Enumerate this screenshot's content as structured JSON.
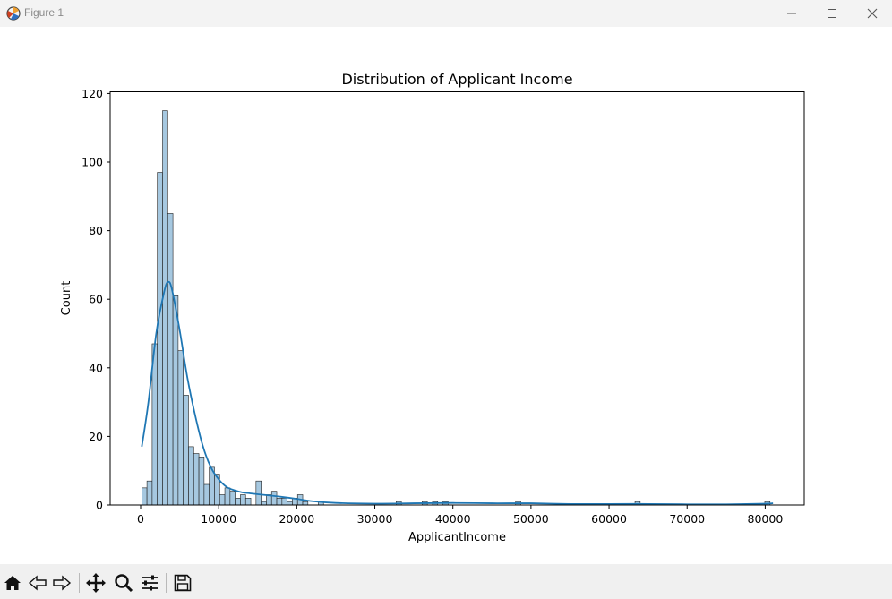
{
  "window": {
    "title": "Figure 1",
    "buttons": [
      "minimize",
      "maximize",
      "close"
    ]
  },
  "toolbar": {
    "icons": [
      "home-icon",
      "back-icon",
      "forward-icon",
      "pan-icon",
      "zoom-icon",
      "configure-subplots-icon",
      "save-icon"
    ]
  },
  "colors": {
    "bar_fill": "#a6c8e0",
    "bar_edge": "#1f1f1f",
    "kde_line": "#1f77b4"
  },
  "chart_data": {
    "type": "bar",
    "title": "Distribution of Applicant Income",
    "xlabel": "ApplicantIncome",
    "ylabel": "Count",
    "xlim": [
      -3900,
      85000
    ],
    "ylim": [
      0,
      120.5
    ],
    "xticks": [
      0,
      10000,
      20000,
      30000,
      40000,
      50000,
      60000,
      70000,
      80000
    ],
    "yticks": [
      0,
      20,
      40,
      60,
      80,
      100,
      120
    ],
    "bin_start": 150,
    "bin_width": 665,
    "bin_counts": [
      5,
      7,
      47,
      97,
      115,
      85,
      61,
      45,
      32,
      17,
      15,
      14,
      6,
      11,
      9,
      3,
      5,
      4,
      2,
      3,
      2,
      0,
      7,
      1,
      3,
      4,
      2,
      2,
      1,
      2,
      3,
      1,
      0,
      0,
      1,
      0,
      0,
      0,
      0,
      0,
      0,
      0,
      0,
      0,
      0,
      0,
      0,
      0,
      0,
      1,
      0,
      0,
      0,
      0,
      1,
      0,
      1,
      0,
      1,
      0,
      0,
      0,
      0,
      0,
      0,
      0,
      0,
      0,
      0,
      0,
      0,
      0,
      1,
      0,
      0,
      0,
      0,
      0,
      0,
      0,
      0,
      0,
      0,
      0,
      0,
      0,
      0,
      0,
      0,
      0,
      0,
      0,
      0,
      0,
      0,
      1,
      0,
      0,
      0,
      0,
      0,
      0,
      0,
      0,
      0,
      0,
      0,
      0,
      0,
      0,
      0,
      0,
      0,
      0,
      0,
      0,
      0,
      0,
      0,
      0,
      1
    ],
    "kde": {
      "x": [
        150,
        1000,
        2000,
        3000,
        3500,
        4000,
        5000,
        6000,
        7000,
        8000,
        9000,
        10000,
        11000,
        12000,
        13000,
        14000,
        16000,
        18000,
        20000,
        22000,
        25000,
        30000,
        35000,
        40000,
        45000,
        50000,
        55000,
        60000,
        65000,
        70000,
        75000,
        80000,
        81000
      ],
      "y": [
        17,
        30,
        50,
        62,
        65,
        63,
        51,
        37,
        26,
        17,
        11,
        7.5,
        5.3,
        4.3,
        3.7,
        3.4,
        2.9,
        2.4,
        1.8,
        1.1,
        0.6,
        0.4,
        0.5,
        0.6,
        0.5,
        0.5,
        0.3,
        0.3,
        0.3,
        0.2,
        0.2,
        0.4,
        0.5
      ]
    }
  }
}
